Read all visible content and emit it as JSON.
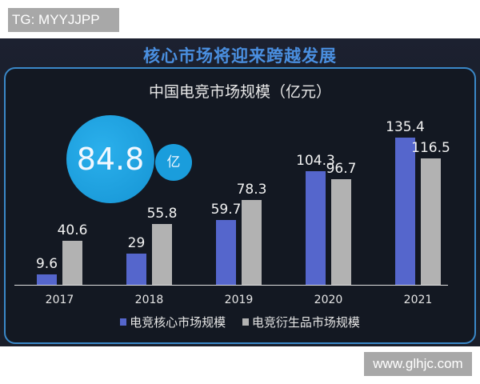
{
  "watermarks": {
    "top": "TG: MYYJJPP",
    "bottom": "www.glhjc.com"
  },
  "headline": "核心市场将迎来跨越发展",
  "highlight": {
    "value": "84.8",
    "unit": "亿"
  },
  "colors": {
    "core": "#5566cc",
    "derivative": "#b2b2b2",
    "accent": "#1a9ddc",
    "frame": "#3a88c8"
  },
  "chart_data": {
    "type": "bar",
    "title": "中国电竞市场规模（亿元）",
    "categories": [
      "2017",
      "2018",
      "2019",
      "2020",
      "2021"
    ],
    "series": [
      {
        "name": "电竞核心市场规模",
        "values": [
          9.6,
          29,
          59.7,
          104.3,
          135.4
        ],
        "labels": [
          "9.6",
          "29",
          "59.7",
          "104.3",
          "135.4"
        ]
      },
      {
        "name": "电竞衍生品市场规模",
        "values": [
          40.6,
          55.8,
          78.3,
          96.7,
          116.5
        ],
        "labels": [
          "40.6",
          "55.8",
          "78.3",
          "96.7",
          "116.5"
        ]
      }
    ],
    "xlabel": "",
    "ylabel": "",
    "ylim": [
      0,
      150
    ],
    "grid": false,
    "legend_position": "bottom",
    "annotation": "84.8 亿"
  }
}
